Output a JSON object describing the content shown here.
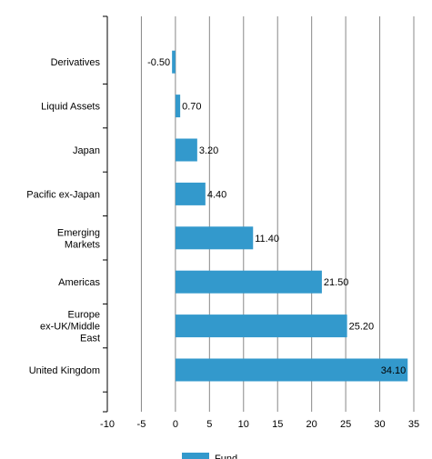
{
  "chart_data": {
    "type": "bar",
    "orientation": "horizontal",
    "categories": [
      [
        "Derivatives"
      ],
      [
        "Liquid Assets"
      ],
      [
        "Japan"
      ],
      [
        "Pacific ex-Japan"
      ],
      [
        "Emerging",
        "Markets"
      ],
      [
        "Americas"
      ],
      [
        "Europe",
        "ex-UK/Middle",
        "East"
      ],
      [
        "United Kingdom"
      ]
    ],
    "series": [
      {
        "name": "Fund",
        "values": [
          -0.5,
          0.7,
          3.2,
          4.4,
          11.4,
          21.5,
          25.2,
          34.1
        ],
        "color": "#3399cc"
      }
    ],
    "value_labels": [
      "-0.50",
      "0.70",
      "3.20",
      "4.40",
      "11.40",
      "21.50",
      "25.20",
      "34.10"
    ],
    "xlim": [
      -10,
      35
    ],
    "xticks": [
      -10,
      -5,
      0,
      5,
      10,
      15,
      20,
      25,
      30,
      35
    ],
    "grid": "vertical",
    "legend": "bottom-center",
    "title": "",
    "xlabel": "",
    "ylabel": ""
  }
}
